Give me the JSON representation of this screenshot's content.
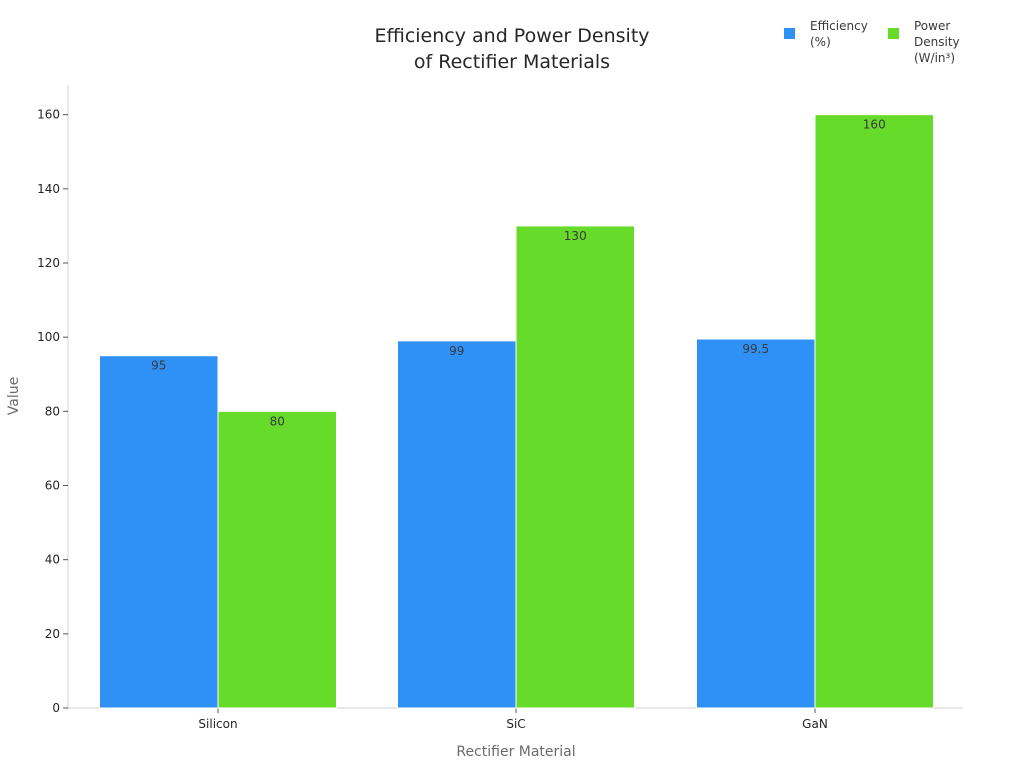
{
  "chart_data": {
    "type": "bar",
    "title_lines": [
      "Efficiency and Power Density",
      "of Rectifier Materials"
    ],
    "xlabel": "Rectifier Material",
    "ylabel": "Value",
    "categories": [
      "Silicon",
      "SiC",
      "GaN"
    ],
    "ylim": [
      0,
      168
    ],
    "yticks": [
      0,
      20,
      40,
      60,
      80,
      100,
      120,
      140,
      160
    ],
    "grid": false,
    "legend_position": "top-right",
    "series": [
      {
        "name_lines": [
          "Efficiency",
          "(%)"
        ],
        "values": [
          95,
          99,
          99.5
        ],
        "labels": [
          "95",
          "99",
          "99.5"
        ],
        "color": "#2f90f5"
      },
      {
        "name_lines": [
          "Power",
          "Density",
          "(W/in³)"
        ],
        "values": [
          80,
          130,
          160
        ],
        "labels": [
          "80",
          "130",
          "160"
        ],
        "color": "#66db2a"
      }
    ]
  }
}
